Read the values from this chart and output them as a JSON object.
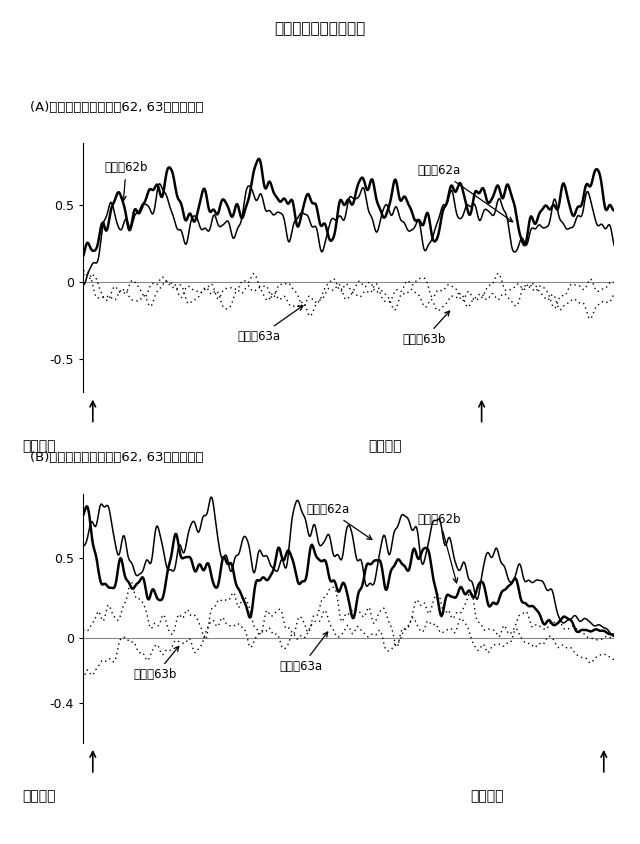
{
  "title": "開閉機固定ボルト弛み",
  "panel_A_title": "(A)閉動作時の歪センサ62, 63の検出信号",
  "panel_B_title": "(B)開動作時の歪センサ62, 63の検出信号",
  "panel_A_left_label": "全開状態",
  "panel_A_right_label": "全閉状態",
  "panel_B_left_label": "全閉状態",
  "panel_B_right_label": "全開状態",
  "A_ylim": [
    -0.72,
    0.9
  ],
  "B_ylim": [
    -0.65,
    0.9
  ],
  "A_yticks": [
    -0.5,
    0.0,
    0.5
  ],
  "B_yticks": [
    -0.4,
    0.0,
    0.5
  ],
  "bg_color": "#ffffff",
  "n_points": 600,
  "ann_62a_A": "歪セン62a",
  "ann_62b_A": "歪セン62b",
  "ann_63a_A": "歪セン63a",
  "ann_63b_A": "歪セン63b",
  "ann_62a_B": "歪セン62a",
  "ann_62b_B": "歪セン62b",
  "ann_63a_B": "歪セン63a",
  "ann_63b_B": "歪セン63b"
}
